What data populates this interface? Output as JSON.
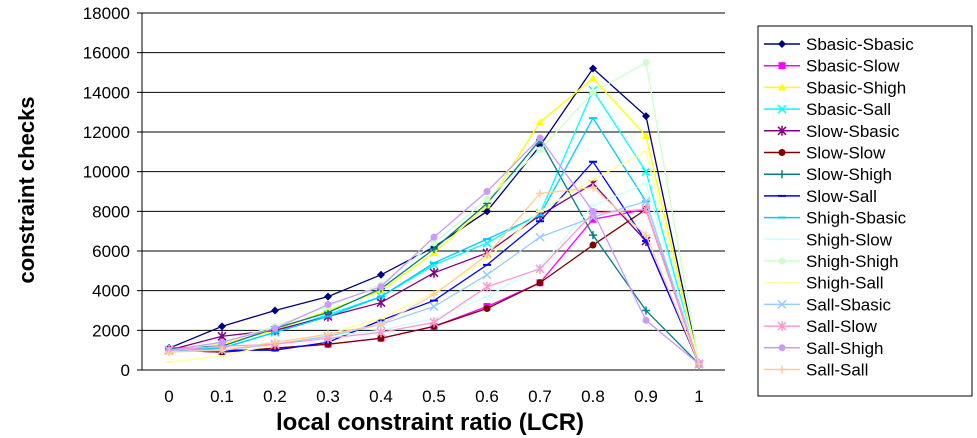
{
  "chart_data": {
    "type": "line",
    "xlabel": "local constraint ratio (LCR)",
    "ylabel": "constraint checks",
    "x": [
      0,
      0.1,
      0.2,
      0.3,
      0.4,
      0.5,
      0.6,
      0.7,
      0.8,
      0.9,
      1
    ],
    "x_tick_labels": [
      "0",
      "0.1",
      "0.2",
      "0.3",
      "0.4",
      "0.5",
      "0.6",
      "0.7",
      "0.8",
      "0.9",
      "1"
    ],
    "ylim": [
      0,
      18000
    ],
    "y_ticks": [
      0,
      2000,
      4000,
      6000,
      8000,
      10000,
      12000,
      14000,
      16000,
      18000
    ],
    "grid": "horizontal",
    "legend_position": "right",
    "series": [
      {
        "name": "Sbasic-Sbasic",
        "color": "#000080",
        "marker": "diamond",
        "values": [
          1100,
          2200,
          3000,
          3700,
          4800,
          6200,
          8000,
          11300,
          15200,
          12800,
          300
        ]
      },
      {
        "name": "Sbasic-Slow",
        "color": "#ff00ff",
        "marker": "square",
        "values": [
          1000,
          900,
          1100,
          1300,
          1600,
          2200,
          3200,
          4400,
          7600,
          8100,
          300
        ]
      },
      {
        "name": "Sbasic-Shigh",
        "color": "#ffff00",
        "marker": "triangle",
        "values": [
          900,
          1300,
          2000,
          3000,
          4000,
          5900,
          8300,
          12500,
          14700,
          11800,
          300
        ]
      },
      {
        "name": "Sbasic-Sall",
        "color": "#00ffff",
        "marker": "x",
        "values": [
          1000,
          1100,
          1900,
          2800,
          3700,
          5300,
          6400,
          7900,
          14100,
          10000,
          300
        ]
      },
      {
        "name": "Slow-Sbasic",
        "color": "#800080",
        "marker": "star",
        "values": [
          1000,
          1700,
          2000,
          2700,
          3400,
          4900,
          5900,
          7800,
          9400,
          6500,
          300
        ]
      },
      {
        "name": "Slow-Slow",
        "color": "#800000",
        "marker": "circle",
        "values": [
          1000,
          900,
          1100,
          1300,
          1600,
          2200,
          3100,
          4400,
          6300,
          8100,
          300
        ]
      },
      {
        "name": "Slow-Shigh",
        "color": "#008080",
        "marker": "plus",
        "values": [
          1100,
          1200,
          2100,
          2900,
          4100,
          6100,
          8400,
          11600,
          6800,
          3000,
          300
        ]
      },
      {
        "name": "Slow-Sall",
        "color": "#0000ff",
        "marker": "dash",
        "values": [
          1000,
          1000,
          1000,
          1400,
          2500,
          3500,
          5300,
          7500,
          10500,
          6500,
          300
        ]
      },
      {
        "name": "Shigh-Sbasic",
        "color": "#00ccff",
        "marker": "dash",
        "values": [
          1000,
          1100,
          1900,
          2700,
          3700,
          5400,
          6600,
          7800,
          12700,
          8500,
          300
        ]
      },
      {
        "name": "Shigh-Slow",
        "color": "#ccffff",
        "marker": "dash",
        "values": [
          900,
          1000,
          1300,
          1700,
          2000,
          2600,
          3700,
          5200,
          8300,
          9400,
          300
        ]
      },
      {
        "name": "Shigh-Shigh",
        "color": "#ccffcc",
        "marker": "circle",
        "values": [
          900,
          1400,
          2200,
          3200,
          4300,
          6400,
          8600,
          11100,
          14000,
          15500,
          300
        ]
      },
      {
        "name": "Shigh-Sall",
        "color": "#ffff99",
        "marker": "dash",
        "values": [
          400,
          700,
          1300,
          1800,
          2600,
          3900,
          5600,
          8000,
          9600,
          11000,
          300
        ]
      },
      {
        "name": "Sall-Sbasic",
        "color": "#99ccff",
        "marker": "x",
        "values": [
          1000,
          1000,
          1300,
          1700,
          2300,
          3200,
          4800,
          6700,
          7700,
          8500,
          300
        ]
      },
      {
        "name": "Sall-Slow",
        "color": "#ff99cc",
        "marker": "star",
        "values": [
          1000,
          1200,
          1300,
          1600,
          1900,
          2400,
          4200,
          5100,
          7900,
          8100,
          300
        ]
      },
      {
        "name": "Sall-Shigh",
        "color": "#cc99ff",
        "marker": "circle",
        "values": [
          1000,
          1400,
          2100,
          3300,
          4200,
          6700,
          9000,
          11700,
          8000,
          2500,
          300
        ]
      },
      {
        "name": "Sall-Sall",
        "color": "#ffcc99",
        "marker": "plus",
        "values": [
          900,
          1000,
          1400,
          1800,
          2300,
          3800,
          5800,
          8900,
          9200,
          6800,
          300
        ]
      }
    ]
  }
}
